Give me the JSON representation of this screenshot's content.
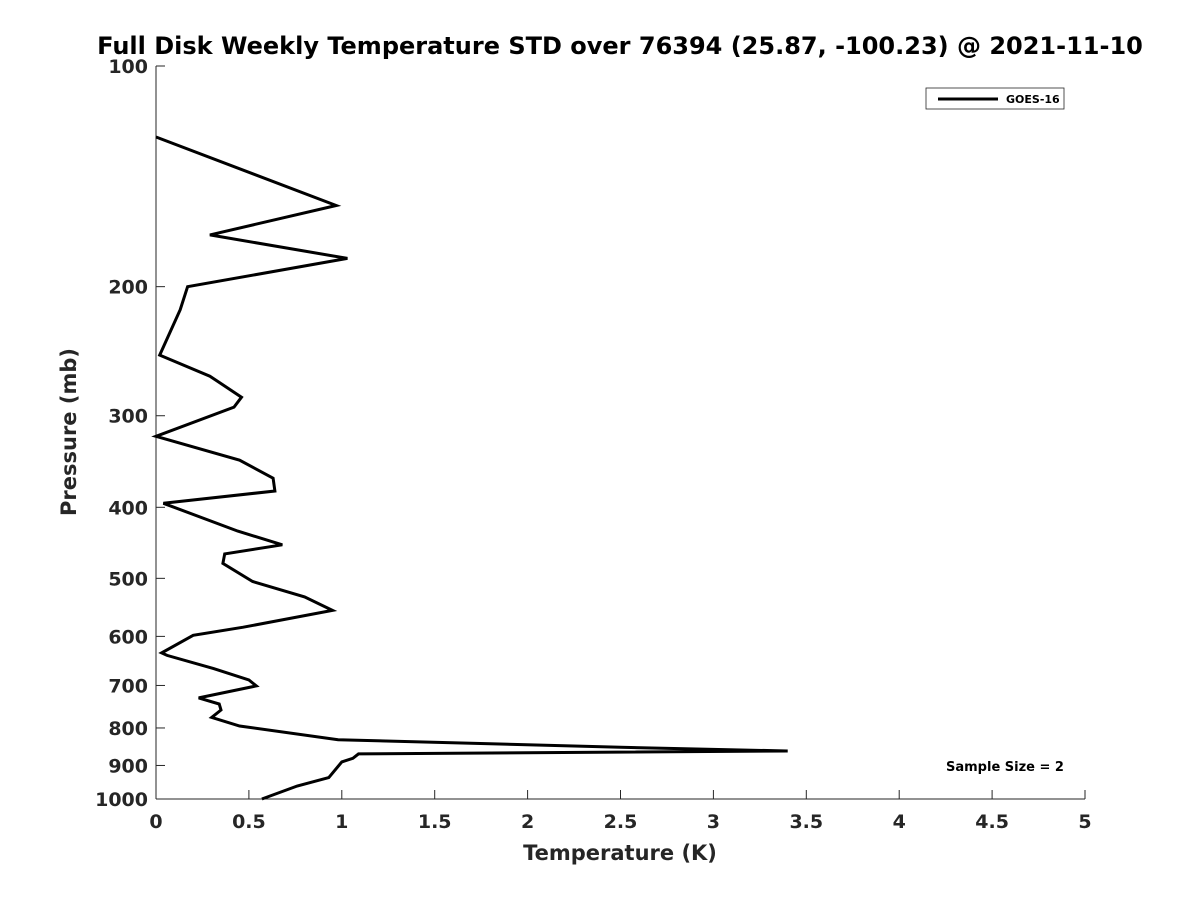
{
  "chart_data": {
    "type": "line",
    "title": "Full Disk Weekly Temperature STD over 76394 (25.87, -100.23) @ 2021-11-10",
    "xlabel": "Temperature (K)",
    "ylabel": "Pressure (mb)",
    "xlim": [
      0,
      5
    ],
    "ylim": [
      100,
      1000
    ],
    "y_scale": "log",
    "y_reversed": true,
    "x_ticks": [
      "0",
      "0.5",
      "1",
      "1.5",
      "2",
      "2.5",
      "3",
      "3.5",
      "4",
      "4.5",
      "5"
    ],
    "x_tick_values": [
      0,
      0.5,
      1,
      1.5,
      2,
      2.5,
      3,
      3.5,
      4,
      4.5,
      5
    ],
    "y_ticks": [
      "100",
      "200",
      "300",
      "400",
      "500",
      "600",
      "700",
      "800",
      "900",
      "1000"
    ],
    "y_tick_values": [
      100,
      200,
      300,
      400,
      500,
      600,
      700,
      800,
      900,
      1000
    ],
    "grid": false,
    "legend_position": "top-right",
    "annotation": "Sample Size = 2",
    "colors": {
      "series": "#000000",
      "axis": "#262626"
    },
    "series": [
      {
        "name": "GOES-16",
        "x": [
          0.0,
          0.97,
          0.29,
          1.03,
          0.17,
          0.13,
          0.02,
          0.29,
          0.46,
          0.42,
          0.0,
          0.45,
          0.63,
          0.64,
          0.04,
          0.44,
          0.68,
          0.37,
          0.36,
          0.52,
          0.8,
          0.95,
          0.47,
          0.2,
          0.03,
          0.06,
          0.31,
          0.5,
          0.54,
          0.23,
          0.34,
          0.35,
          0.3,
          0.45,
          0.98,
          2.5,
          3.4,
          1.09,
          1.06,
          1.0,
          0.93,
          0.76,
          0.57
        ],
        "y": [
          125,
          155,
          170,
          183,
          200,
          215,
          248,
          265,
          283,
          292,
          320,
          345,
          365,
          380,
          395,
          431,
          450,
          463,
          477,
          505,
          530,
          553,
          583,
          598,
          632,
          637,
          664,
          688,
          701,
          728,
          742,
          756,
          774,
          795,
          830,
          850,
          860,
          868,
          880,
          890,
          935,
          960,
          1000
        ]
      }
    ]
  }
}
